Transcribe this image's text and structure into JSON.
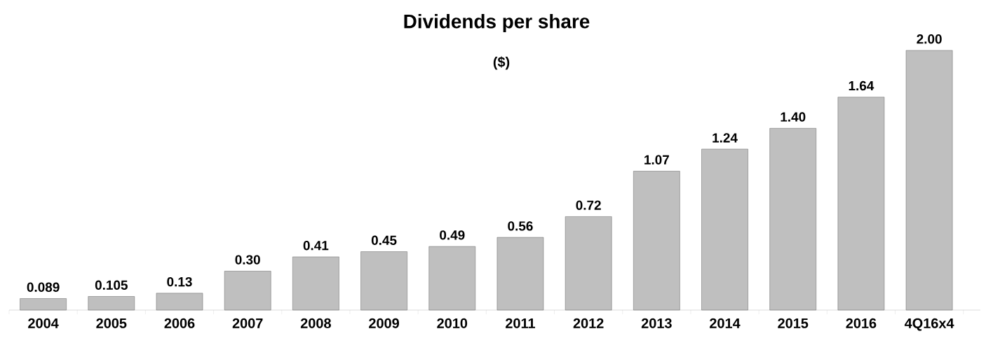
{
  "chart_data": {
    "type": "bar",
    "title": "Dividends per share",
    "subtitle": "($)",
    "categories": [
      "2004",
      "2005",
      "2006",
      "2007",
      "2008",
      "2009",
      "2010",
      "2011",
      "2012",
      "2013",
      "2014",
      "2015",
      "2016",
      "4Q16x4"
    ],
    "values": [
      0.089,
      0.105,
      0.13,
      0.3,
      0.41,
      0.45,
      0.49,
      0.56,
      0.72,
      1.07,
      1.24,
      1.4,
      1.64,
      2.0
    ],
    "value_labels": [
      "0.089",
      "0.105",
      "0.13",
      "0.30",
      "0.41",
      "0.45",
      "0.49",
      "0.56",
      "0.72",
      "1.07",
      "1.24",
      "1.40",
      "1.64",
      "2.00"
    ],
    "color": "#bfbfbf"
  }
}
